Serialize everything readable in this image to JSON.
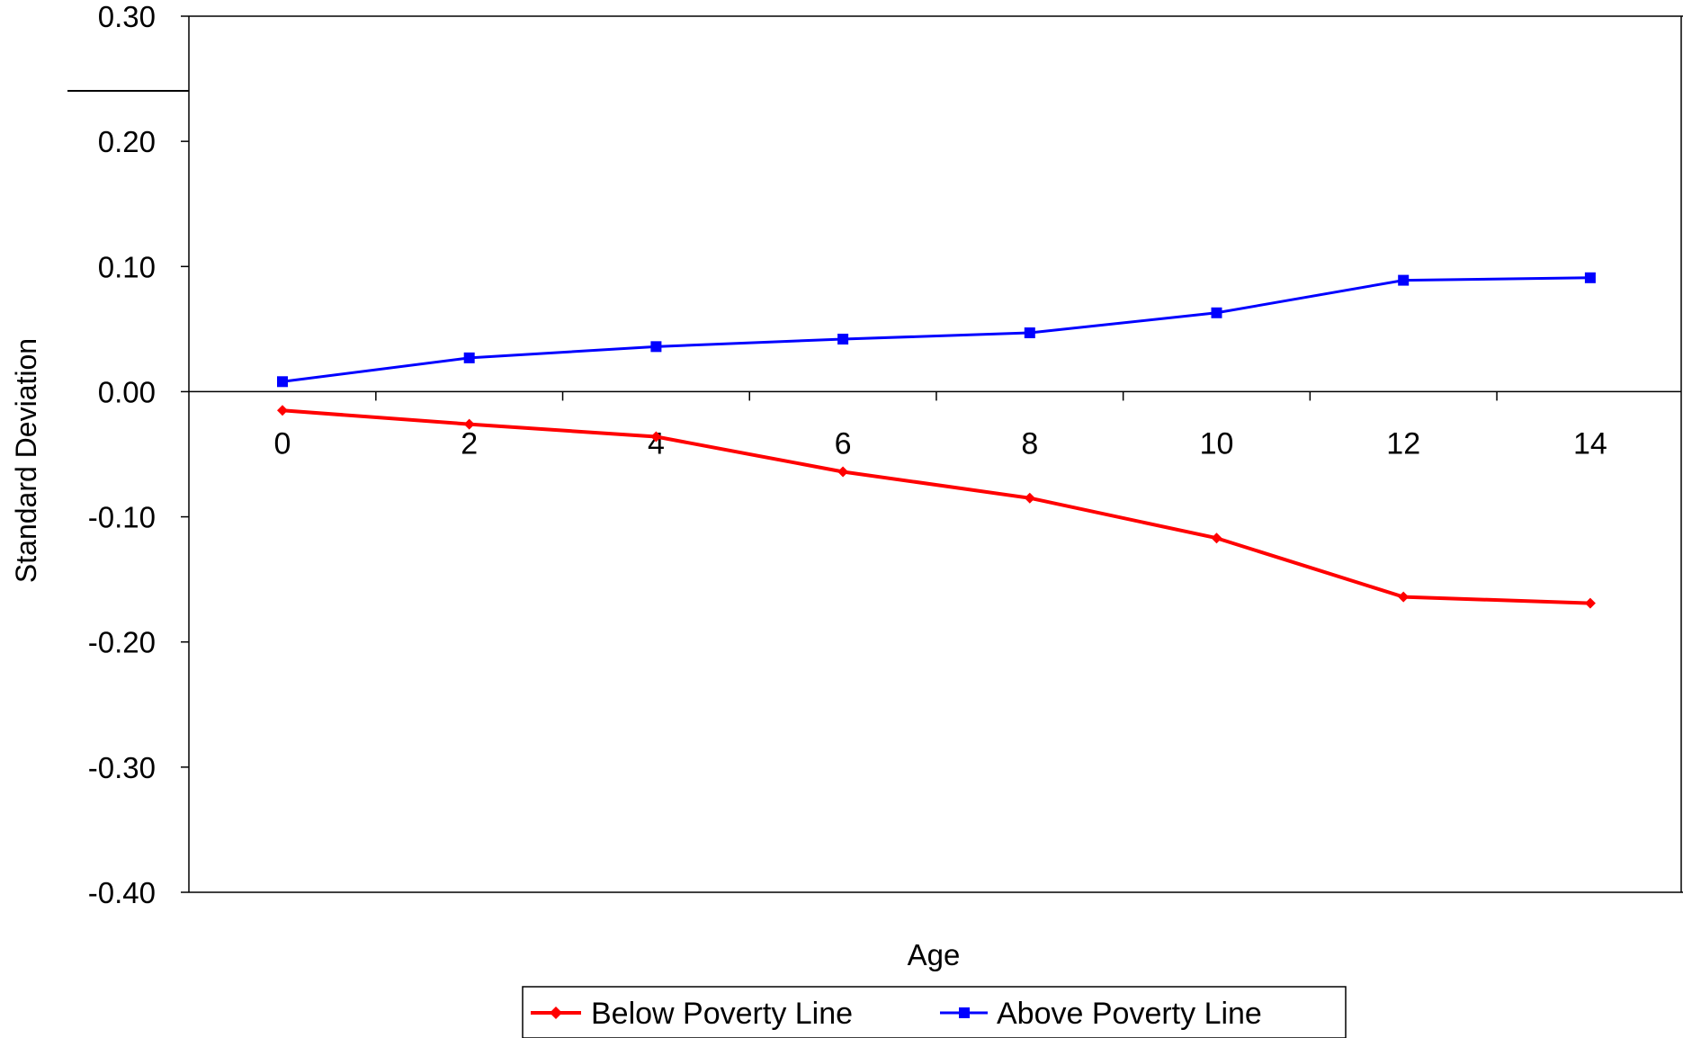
{
  "chart_data": {
    "type": "line",
    "title": "",
    "xlabel": "Age",
    "ylabel": "Standard Deviation",
    "x": [
      0,
      2,
      4,
      6,
      8,
      10,
      12,
      14
    ],
    "x_tick_labels": [
      "0",
      "2",
      "4",
      "6",
      "8",
      "10",
      "12",
      "14"
    ],
    "ylim": [
      -0.4,
      0.3
    ],
    "y_ticks": [
      0.3,
      0.2,
      0.1,
      0.0,
      -0.1,
      -0.2,
      -0.3,
      -0.4
    ],
    "y_tick_labels": [
      "0.30",
      "0.20",
      "0.10",
      "0.00",
      "-0.10",
      "-0.20",
      "-0.30",
      "-0.40"
    ],
    "grid": false,
    "legend_position": "bottom",
    "series": [
      {
        "name": "Below Poverty Line",
        "color": "#FF0000",
        "marker": "diamond",
        "values": [
          -0.015,
          -0.026,
          -0.036,
          -0.064,
          -0.085,
          -0.117,
          -0.164,
          -0.169
        ]
      },
      {
        "name": "Above Poverty Line",
        "color": "#0000FF",
        "marker": "square",
        "values": [
          0.008,
          0.027,
          0.036,
          0.042,
          0.047,
          0.063,
          0.089,
          0.091
        ]
      }
    ]
  }
}
